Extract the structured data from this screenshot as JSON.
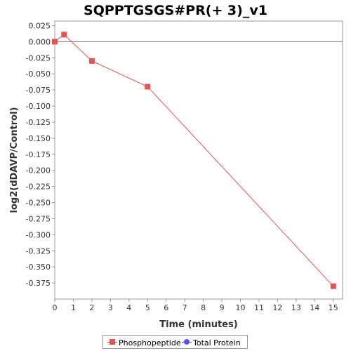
{
  "chart_data": {
    "type": "line",
    "title": "SQPPTGSGS#PR(+ 3)_v1",
    "xlabel": "Time (minutes)",
    "ylabel": "log2(dDAVP/Control)",
    "xlim": [
      0,
      15.5
    ],
    "ylim": [
      -0.4,
      0.032
    ],
    "x_ticks": [
      0,
      1,
      2,
      3,
      4,
      5,
      6,
      7,
      8,
      9,
      10,
      11,
      12,
      13,
      14,
      15
    ],
    "y_ticks": [
      0.025,
      0.0,
      -0.025,
      -0.05,
      -0.075,
      -0.1,
      -0.125,
      -0.15,
      -0.175,
      -0.2,
      -0.225,
      -0.25,
      -0.275,
      -0.3,
      -0.325,
      -0.35,
      -0.375
    ],
    "y_tick_labels": [
      "0.025",
      "0.000",
      "-0.025",
      "-0.050",
      "-0.075",
      "-0.100",
      "-0.125",
      "-0.150",
      "-0.175",
      "-0.200",
      "-0.225",
      "-0.250",
      "-0.275",
      "-0.300",
      "-0.325",
      "-0.350",
      "-0.375"
    ],
    "zero_line": true,
    "grid": false,
    "legend_position": "bottom",
    "series": [
      {
        "name": "Phosphopeptide",
        "color": "#e05555",
        "marker": "square",
        "x": [
          0,
          0.5,
          2,
          5,
          15
        ],
        "y": [
          0.0,
          0.011,
          -0.03,
          -0.07,
          -0.38
        ]
      },
      {
        "name": "Total Protein",
        "color": "#5555e0",
        "marker": "circle",
        "x": [],
        "y": []
      }
    ]
  }
}
